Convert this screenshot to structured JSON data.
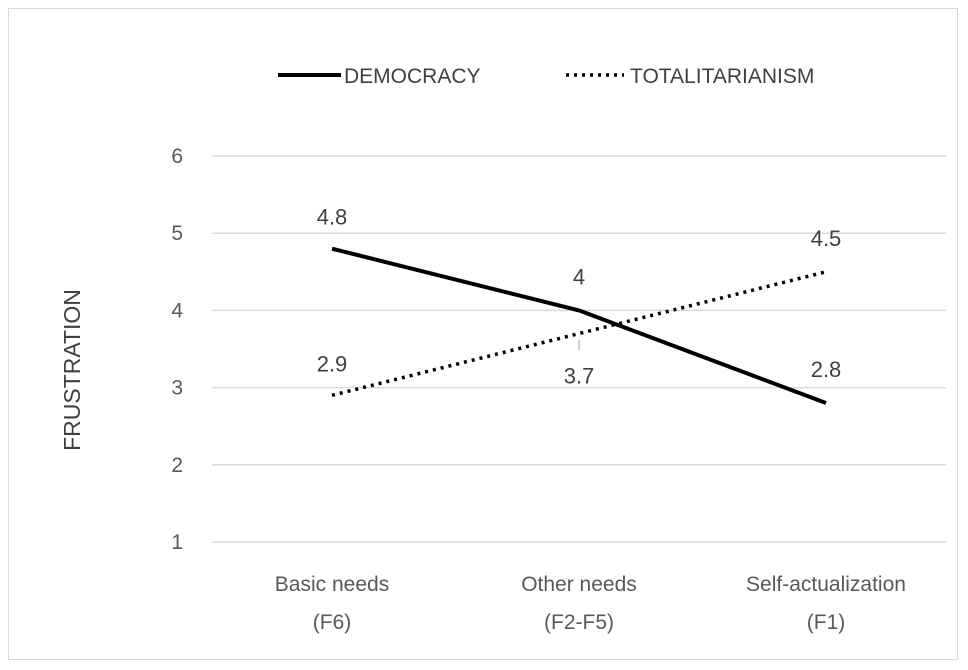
{
  "chart_data": {
    "type": "line",
    "title": "",
    "ylabel": "FRUSTRATION",
    "xlabel": "",
    "categories": [
      [
        "Basic needs",
        "(F6)"
      ],
      [
        "Other needs",
        "(F2-F5)"
      ],
      [
        "Self-actualization",
        "(F1)"
      ]
    ],
    "ylim": [
      1,
      6
    ],
    "yticks": [
      1,
      2,
      3,
      4,
      5,
      6
    ],
    "grid": true,
    "legend_position": "top",
    "series": [
      {
        "name": "DEMOCRACY",
        "values": [
          4.8,
          4,
          2.8
        ],
        "labels": [
          "4.8",
          "4",
          "2.8"
        ],
        "style": "solid",
        "color": "#000000"
      },
      {
        "name": "TOTALITARIANISM",
        "values": [
          2.9,
          3.7,
          4.5
        ],
        "labels": [
          "2.9",
          "3.7",
          "4.5"
        ],
        "style": "dotted",
        "color": "#000000"
      }
    ]
  }
}
